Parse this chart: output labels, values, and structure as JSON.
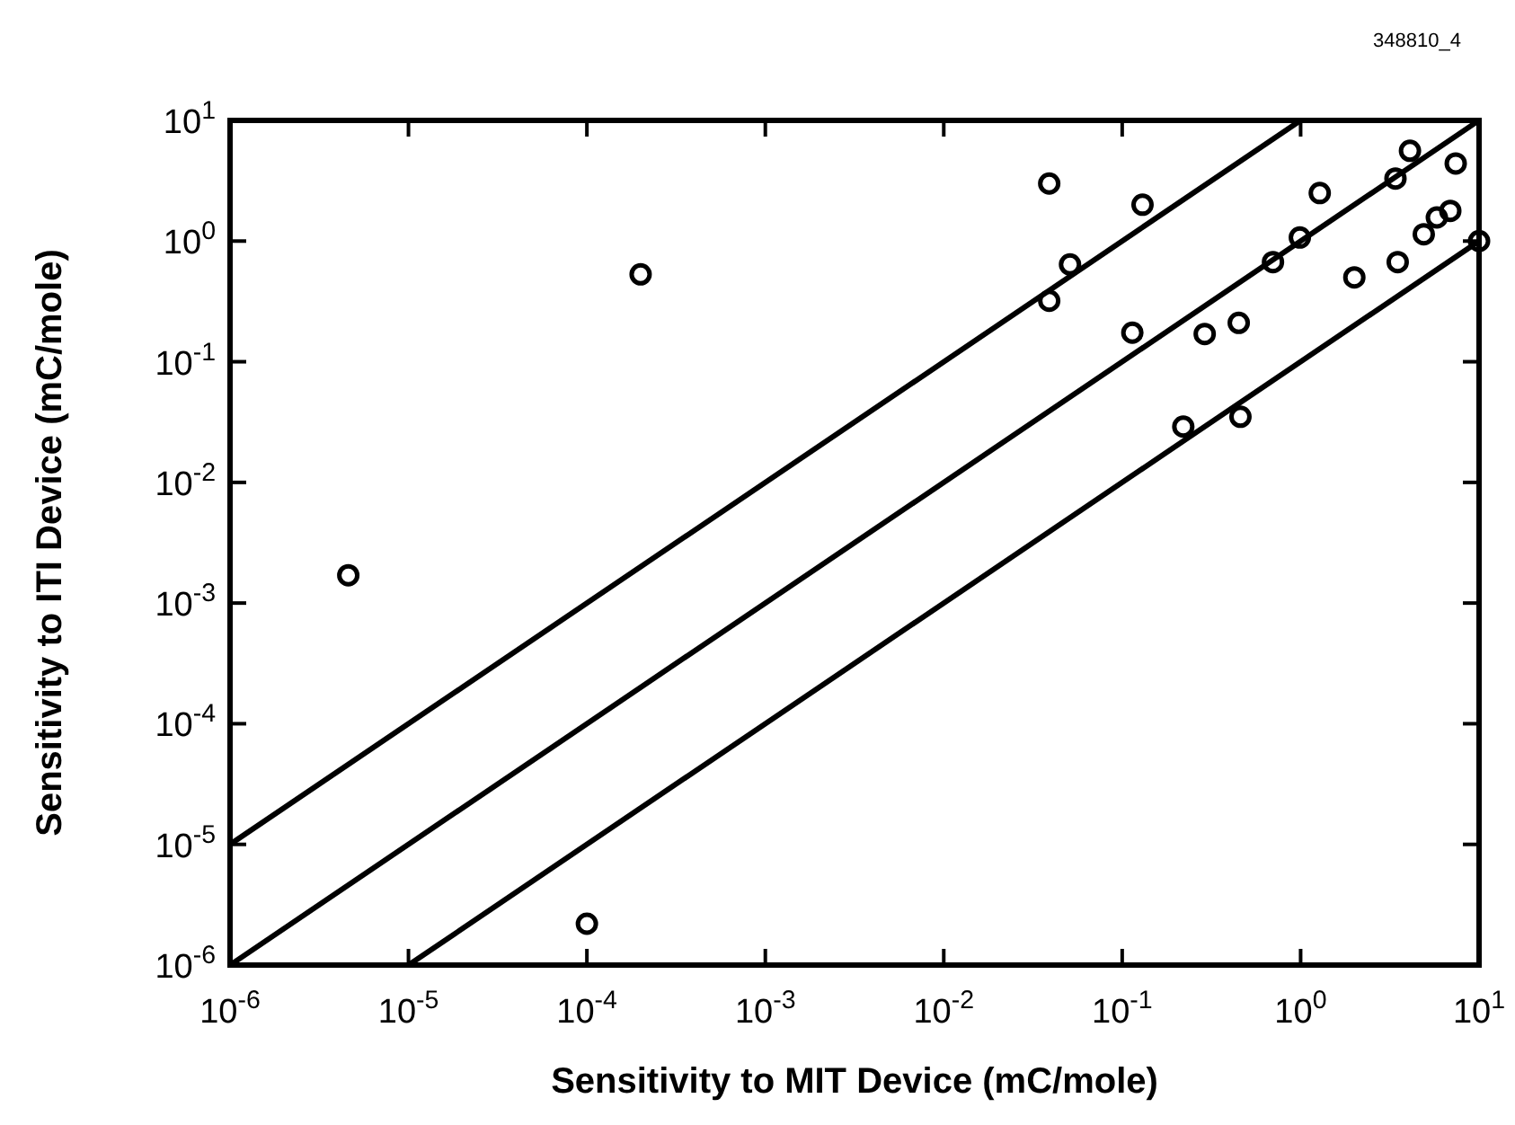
{
  "chart_data": {
    "type": "scatter",
    "xlabel": "Sensitivity to MIT Device (mC/mole)",
    "ylabel": "Sensitivity to ITI Device (mC/mole)",
    "log": "xy",
    "grid": false,
    "xlim": [
      1e-06,
      10
    ],
    "ylim": [
      1e-06,
      10
    ],
    "xticks": [
      {
        "value": 1e-06,
        "label": "10$^{-6}$"
      },
      {
        "value": 1e-05,
        "label": "10$^{-5}$"
      },
      {
        "value": 0.0001,
        "label": "10$^{-4}$"
      },
      {
        "value": 0.001,
        "label": "10$^{-3}$"
      },
      {
        "value": 0.01,
        "label": "10$^{-2}$"
      },
      {
        "value": 0.1,
        "label": "10$^{-1}$"
      },
      {
        "value": 1,
        "label": "10$^{0}$"
      },
      {
        "value": 10,
        "label": "10$^{1}$"
      }
    ],
    "yticks": [
      {
        "value": 1e-06,
        "label": "10$^{-6}$"
      },
      {
        "value": 1e-05,
        "label": "10$^{-5}$"
      },
      {
        "value": 0.0001,
        "label": "10$^{-4}$"
      },
      {
        "value": 0.001,
        "label": "10$^{-3}$"
      },
      {
        "value": 0.01,
        "label": "10$^{-2}$"
      },
      {
        "value": 0.1,
        "label": "10$^{-1}$"
      },
      {
        "value": 1,
        "label": "10$^{0}$"
      },
      {
        "value": 10,
        "label": "10$^{1}$"
      }
    ],
    "annotations": [
      "348810_4"
    ],
    "series": [
      {
        "marker": "circle",
        "color": "#000000",
        "x": [
          0.0002,
          4.6e-06,
          0.0001,
          0.039,
          0.13,
          0.051,
          0.039,
          0.114,
          0.29,
          0.45,
          0.22,
          0.46,
          0.7,
          0.99,
          1.28,
          2.0,
          3.4,
          4.1,
          7.4,
          3.5,
          4.9,
          5.8,
          6.9,
          10
        ],
        "values": [
          0.53,
          0.0017,
          2.2e-06,
          3.0,
          2.0,
          0.64,
          0.32,
          0.174,
          0.17,
          0.21,
          0.029,
          0.035,
          0.67,
          1.07,
          2.5,
          0.5,
          3.3,
          5.6,
          4.4,
          0.67,
          1.14,
          1.57,
          1.78,
          1.0
        ]
      },
      {
        "type": "line",
        "marker": "none",
        "line_style": "solid",
        "color": "#000000",
        "x": [
          1e-06,
          1
        ],
        "values": [
          1e-05,
          10
        ]
      },
      {
        "type": "line",
        "marker": "none",
        "line_style": "solid",
        "color": "#000000",
        "x": [
          1e-06,
          10
        ],
        "values": [
          1e-06,
          10
        ]
      },
      {
        "type": "line",
        "marker": "none",
        "line_style": "solid",
        "color": "#000000",
        "x": [
          1e-05,
          10
        ],
        "values": [
          1e-06,
          1
        ]
      }
    ]
  }
}
